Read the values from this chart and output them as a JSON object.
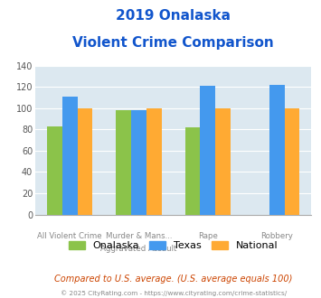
{
  "title_line1": "2019 Onalaska",
  "title_line2": "Violent Crime Comparison",
  "cat_labels_top": [
    "",
    "Murder & Mans...",
    "",
    ""
  ],
  "cat_labels_bot": [
    "All Violent Crime",
    "Aggravated Assault",
    "Rape",
    "Robbery"
  ],
  "series": {
    "Onalaska": [
      83,
      98,
      82,
      0
    ],
    "Texas": [
      111,
      98,
      121,
      122
    ],
    "National": [
      100,
      100,
      100,
      100
    ]
  },
  "colors": {
    "Onalaska": "#8bc34a",
    "Texas": "#4499ee",
    "National": "#ffaa33"
  },
  "ylim": [
    0,
    140
  ],
  "yticks": [
    0,
    20,
    40,
    60,
    80,
    100,
    120,
    140
  ],
  "plot_bg": "#dce8f0",
  "title_color": "#1155cc",
  "footer_text": "Compared to U.S. average. (U.S. average equals 100)",
  "credit_text": "© 2025 CityRating.com - https://www.cityrating.com/crime-statistics/",
  "footer_color": "#cc4400",
  "credit_color": "#888888"
}
